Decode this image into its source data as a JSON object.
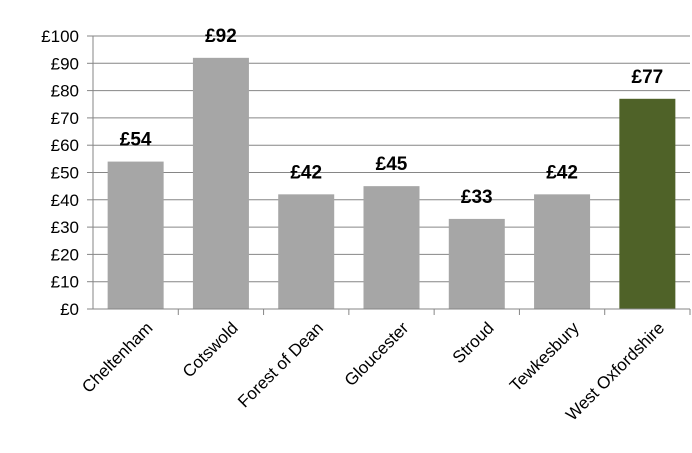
{
  "chart_data": {
    "type": "bar",
    "categories": [
      "Cheltenham",
      "Cotswold",
      "Forest of Dean",
      "Gloucester",
      "Stroud",
      "Tewkesbury",
      "West Oxfordshire"
    ],
    "values": [
      54,
      92,
      42,
      45,
      33,
      42,
      77
    ],
    "value_labels": [
      "£54",
      "£92",
      "£42",
      "£45",
      "£33",
      "£42",
      "£77"
    ],
    "yticks": [
      "£0",
      "£10",
      "£20",
      "£30",
      "£40",
      "£50",
      "£60",
      "£70",
      "£80",
      "£90",
      "£100"
    ],
    "ylim": [
      0,
      100
    ],
    "grid": true,
    "legend": "none",
    "bar_color": "#a6a6a6",
    "highlight_color": "#4f6228",
    "highlight_index": 6
  }
}
